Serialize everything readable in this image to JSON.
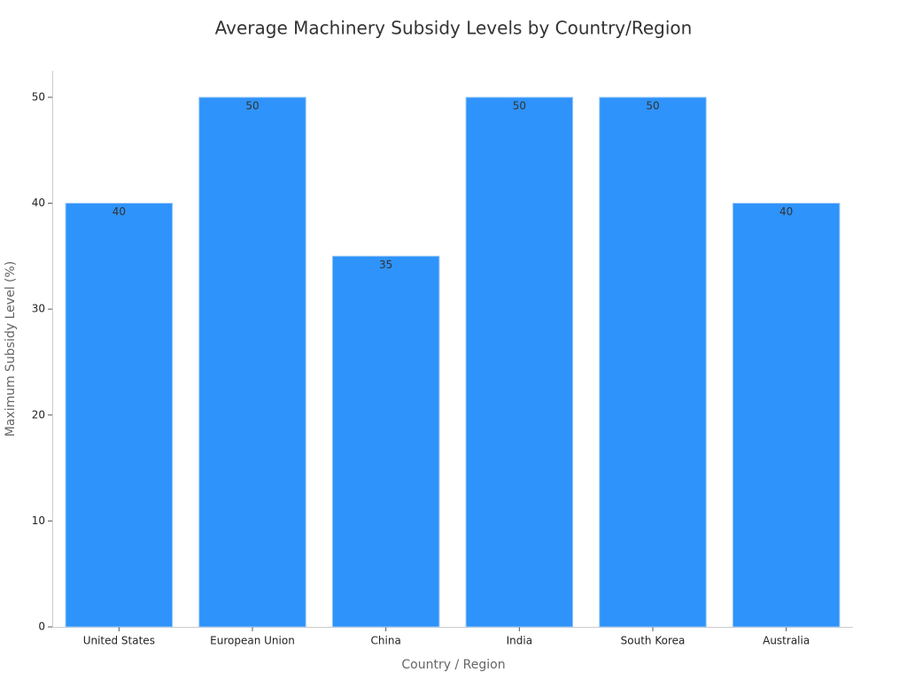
{
  "chart_data": {
    "type": "bar",
    "title": "Average Machinery Subsidy Levels by Country/Region",
    "x_label": "Country / Region",
    "y_label": "Maximum Subsidy Level (%)",
    "categories": [
      "United States",
      "European Union",
      "China",
      "India",
      "South Korea",
      "Australia"
    ],
    "values": [
      40,
      50,
      35,
      50,
      50,
      40
    ],
    "color": "#2e93fa",
    "ylim": [
      0,
      52.5
    ],
    "yticks": [
      0,
      10,
      20,
      30,
      40,
      50
    ],
    "grid": false
  }
}
